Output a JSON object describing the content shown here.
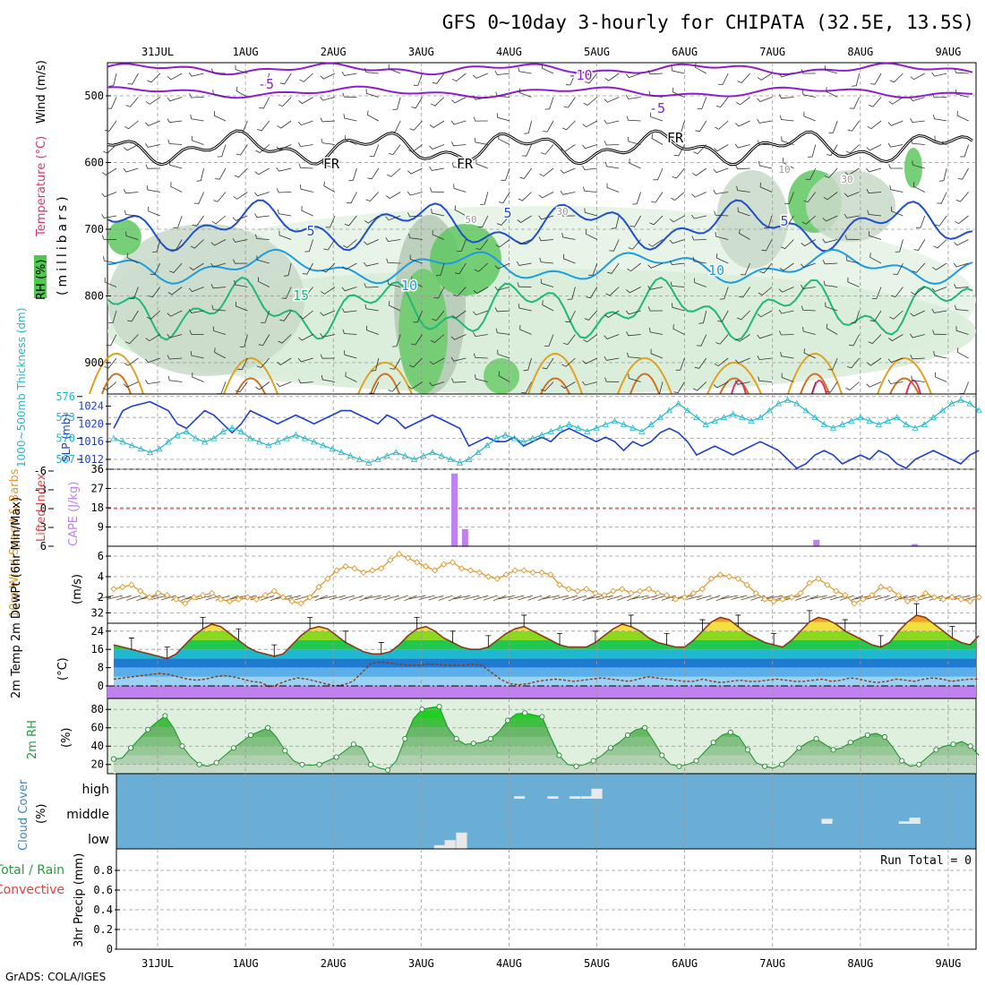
{
  "title": "GFS 0~10day 3-hourly for CHIPATA (32.5E, 13.5S)",
  "footer": "GrADS: COLA/IGES",
  "colors": {
    "rh_green": "#4fc84f",
    "temp_purple": "#8b1fd0",
    "temp_blue": "#1f4fd0",
    "temp_lightblue": "#1f9be0",
    "temp_green": "#1fb87a",
    "temp_orange": "#e0a020",
    "temp_red": "#e0306e",
    "slp_blue": "#1f3fd0",
    "thickness_cyan": "#22b8c8",
    "cape_purple": "#c080f0",
    "wind_orange": "#e09a30",
    "cloud_blue": "#6aaed6"
  },
  "chart_data": [
    {
      "type": "line",
      "id": "upper-air",
      "y_axis_label_parts": [
        "RH (%)",
        "Temperature (°C)",
        "Wind (m/s)"
      ],
      "y_unit_label": "(millibars)",
      "ylim": [
        500,
        940
      ],
      "y_ticks": [
        500,
        600,
        700,
        800,
        900
      ],
      "x_ticks": [
        "31JUL",
        "1AUG",
        "2AUG",
        "3AUG",
        "4AUG",
        "5AUG",
        "6AUG",
        "7AUG",
        "8AUG",
        "9AUG"
      ],
      "isotherm_labels": [
        "-10",
        "-5",
        "-5",
        "FR",
        "FR",
        "FR",
        "5",
        "5",
        "5",
        "10",
        "10",
        "15",
        "10",
        "30",
        "30",
        "50"
      ]
    },
    {
      "type": "line",
      "id": "slp-thickness",
      "left_label": "1000~500mb Thickness (dm)",
      "right_label": "SLP (mb)",
      "left_ticks": [
        "576",
        "573",
        "570",
        "567"
      ],
      "right_ticks": [
        "1024",
        "1020",
        "1016",
        "1012"
      ],
      "series": [
        {
          "name": "SLP (mb)",
          "values": [
            1019,
            1023,
            1024,
            1024.5,
            1025,
            1024,
            1023,
            1020,
            1019,
            1021,
            1023,
            1022,
            1020,
            1018,
            1020,
            1023,
            1022,
            1021,
            1020,
            1021,
            1022,
            1021,
            1020,
            1021,
            1022,
            1023,
            1023,
            1022,
            1021,
            1020,
            1022,
            1021,
            1019,
            1020,
            1021,
            1022,
            1021,
            1020,
            1019,
            1015,
            1016,
            1017,
            1016,
            1016,
            1017,
            1015,
            1016,
            1017,
            1016,
            1018,
            1019,
            1018,
            1017,
            1016,
            1017,
            1016,
            1014,
            1016,
            1015,
            1016,
            1018,
            1019,
            1018,
            1016,
            1013,
            1014,
            1015,
            1014,
            1013,
            1014,
            1015,
            1016,
            1015,
            1014,
            1012,
            1010,
            1011,
            1013,
            1014,
            1013,
            1011,
            1012,
            1013,
            1012,
            1014,
            1013,
            1011,
            1010,
            1012,
            1013,
            1014,
            1013,
            1012,
            1011,
            1013,
            1014
          ]
        },
        {
          "name": "1000~500mb Thickness (dm)",
          "values": [
            570,
            569.5,
            569,
            568.5,
            568,
            568.5,
            569.5,
            570.5,
            571,
            570,
            569.5,
            570,
            571,
            571.5,
            571,
            570,
            569.5,
            569,
            569.5,
            570,
            570.5,
            570,
            569.5,
            569,
            568.5,
            568,
            567.5,
            567,
            566.5,
            567,
            567.5,
            568,
            567.5,
            567,
            567.5,
            568,
            567.5,
            567,
            566.5,
            567,
            568,
            569,
            570,
            570.5,
            570,
            569.5,
            570,
            570.5,
            571,
            571.5,
            572,
            571.5,
            571,
            571.5,
            572,
            572.5,
            572,
            571.5,
            571,
            572,
            573,
            574,
            575,
            574,
            573,
            572,
            572.5,
            573,
            573.5,
            573,
            572.5,
            573,
            574,
            575,
            575.5,
            575,
            574,
            573,
            572,
            571.5,
            572,
            572.5,
            573,
            572.5,
            572,
            572.5,
            573,
            572,
            571.5,
            572,
            573,
            574,
            575,
            575.5,
            575,
            574
          ]
        }
      ]
    },
    {
      "type": "bar",
      "id": "cape-li",
      "left_label": "Lifted Index",
      "right_label": "CAPE (J/kg)",
      "left_ticks": [
        "-6",
        "-3",
        "0",
        "3",
        "6"
      ],
      "right_ticks": [
        "36",
        "27",
        "18",
        "9"
      ],
      "bars": [
        {
          "day": 3.38,
          "value": 34
        },
        {
          "day": 3.5,
          "value": 8
        },
        {
          "day": 7.5,
          "value": 3
        },
        {
          "day": 8.62,
          "value": 1
        }
      ]
    },
    {
      "type": "line",
      "id": "wind10m",
      "label": "10m Wind Speed & Barbs",
      "unit": "(m/s)",
      "y_ticks": [
        "6",
        "4",
        "2"
      ],
      "ylim": [
        0,
        7
      ],
      "series": [
        {
          "name": "10m Wind Speed",
          "values": [
            2.8,
            3.0,
            3.2,
            2.6,
            2.0,
            2.4,
            2.2,
            1.8,
            1.4,
            2.0,
            2.2,
            2.4,
            1.8,
            1.6,
            1.8,
            2.0,
            1.8,
            2.2,
            2.6,
            2.0,
            1.6,
            1.4,
            2.0,
            3.0,
            3.8,
            4.6,
            5.0,
            4.8,
            4.4,
            4.6,
            4.8,
            5.6,
            6.2,
            5.8,
            5.4,
            5.0,
            4.6,
            5.2,
            5.4,
            4.8,
            4.6,
            4.4,
            4.0,
            3.8,
            4.2,
            4.6,
            4.6,
            4.4,
            4.4,
            4.2,
            3.2,
            2.8,
            2.6,
            2.8,
            2.4,
            2.2,
            2.6,
            2.8,
            2.4,
            2.6,
            2.8,
            2.4,
            2.2,
            1.8,
            2.0,
            2.4,
            2.8,
            3.8,
            4.2,
            4.0,
            3.8,
            3.2,
            2.4,
            1.8,
            1.6,
            1.8,
            2.0,
            2.4,
            3.4,
            3.8,
            3.2,
            2.6,
            2.2,
            1.4,
            1.8,
            2.2,
            3.0,
            2.8,
            2.2,
            1.6,
            1.8,
            2.4,
            2.0,
            1.8,
            2.0,
            1.8,
            1.6,
            2.0
          ]
        }
      ]
    },
    {
      "type": "area",
      "id": "temp2m",
      "label": "2m Temp 2m DewPt (6hr Min/Max)",
      "unit": "(°C)",
      "y_ticks": [
        "32",
        "24",
        "16",
        "8",
        "0"
      ],
      "ylim": [
        -4,
        34
      ],
      "series": [
        {
          "name": "2m Temp",
          "values": [
            18,
            17,
            16,
            15,
            14,
            13,
            12,
            14,
            18,
            22,
            25,
            27,
            26,
            23,
            20,
            17,
            15,
            14,
            13,
            14,
            18,
            22,
            25,
            26,
            25,
            22,
            19,
            17,
            15,
            14,
            14,
            15,
            18,
            22,
            25,
            26,
            24,
            21,
            19,
            17,
            16,
            16,
            17,
            20,
            23,
            25,
            26,
            24,
            22,
            20,
            18,
            17,
            17,
            17,
            19,
            22,
            25,
            27,
            26,
            24,
            21,
            19,
            18,
            17,
            17,
            20,
            24,
            28,
            30,
            29,
            26,
            23,
            21,
            19,
            18,
            17,
            20,
            24,
            28,
            30,
            29,
            27,
            24,
            22,
            20,
            18,
            17,
            19,
            24,
            28,
            31,
            30,
            27,
            24,
            21,
            19,
            18,
            22
          ]
        },
        {
          "name": "2m DewPt",
          "values": [
            3,
            3.5,
            4,
            4.5,
            5,
            5.5,
            5,
            4,
            3,
            2.5,
            3,
            4,
            4.5,
            4,
            3,
            2,
            1.5,
            -0.5,
            1,
            2.5,
            3.5,
            3,
            2,
            1,
            0,
            0.5,
            2,
            6,
            10,
            10.5,
            10,
            9.5,
            9,
            9,
            9.5,
            9.5,
            9,
            9,
            9,
            9.5,
            9,
            6,
            3,
            1,
            0.5,
            1,
            2,
            2.5,
            3,
            2.5,
            2,
            2.5,
            3,
            3.5,
            3,
            2.5,
            2,
            3,
            4,
            3.5,
            3,
            2.5,
            2,
            2,
            3,
            2,
            1.5,
            2,
            2.5,
            2,
            2,
            2.5,
            3,
            2.5,
            2,
            2,
            2.5,
            3,
            2,
            2.5,
            3.5,
            3,
            2,
            1.5,
            2,
            3,
            2.5,
            2,
            3,
            3.5,
            3,
            2,
            2.5,
            3,
            3
          ]
        }
      ]
    },
    {
      "type": "area",
      "id": "rh2m",
      "label": "2m RH",
      "unit": "(%)",
      "y_ticks": [
        "80",
        "60",
        "40",
        "20"
      ],
      "ylim": [
        10,
        88
      ],
      "series": [
        {
          "name": "2m RH",
          "values": [
            26,
            27,
            38,
            48,
            58,
            66,
            73,
            60,
            40,
            28,
            20,
            18,
            22,
            30,
            38,
            45,
            52,
            56,
            60,
            50,
            35,
            24,
            20,
            19,
            20,
            24,
            28,
            35,
            42,
            38,
            20,
            16,
            14,
            24,
            48,
            70,
            80,
            82,
            83,
            60,
            48,
            42,
            43,
            44,
            48,
            56,
            68,
            75,
            76,
            74,
            72,
            50,
            30,
            20,
            18,
            20,
            24,
            30,
            38,
            44,
            52,
            58,
            60,
            46,
            30,
            20,
            18,
            20,
            24,
            34,
            44,
            52,
            55,
            50,
            36,
            22,
            18,
            16,
            20,
            28,
            38,
            44,
            48,
            42,
            36,
            38,
            44,
            48,
            52,
            54,
            50,
            38,
            24,
            18,
            20,
            28,
            36,
            40,
            42,
            45,
            40,
            30
          ]
        }
      ]
    },
    {
      "type": "bar",
      "id": "cloud",
      "label": "Cloud Cover",
      "unit": "(%)",
      "y_ticks": [
        "high",
        "middle",
        "low"
      ],
      "cells": [
        {
          "day": 3.21,
          "level": "low",
          "value": 15
        },
        {
          "day": 3.33,
          "level": "low",
          "value": 35
        },
        {
          "day": 3.46,
          "level": "low",
          "value": 65
        },
        {
          "day": 4.12,
          "level": "high",
          "value": 10
        },
        {
          "day": 4.5,
          "level": "high",
          "value": 10
        },
        {
          "day": 4.75,
          "level": "high",
          "value": 10
        },
        {
          "day": 4.88,
          "level": "high",
          "value": 10
        },
        {
          "day": 5.0,
          "level": "high",
          "value": 40
        },
        {
          "day": 7.62,
          "level": "middle",
          "value": 20
        },
        {
          "day": 8.5,
          "level": "middle",
          "value": 10
        },
        {
          "day": 8.62,
          "level": "middle",
          "value": 25
        }
      ]
    },
    {
      "type": "bar",
      "id": "precip",
      "label_total_rain": "Total / Rain",
      "label_convective": "Convective",
      "unit": "3hr Precip (mm)",
      "y_ticks": [
        "0.8",
        "0.6",
        "0.4",
        "0.2",
        "0"
      ],
      "ylim": [
        0,
        1
      ],
      "run_total": "Run Total = 0"
    }
  ]
}
